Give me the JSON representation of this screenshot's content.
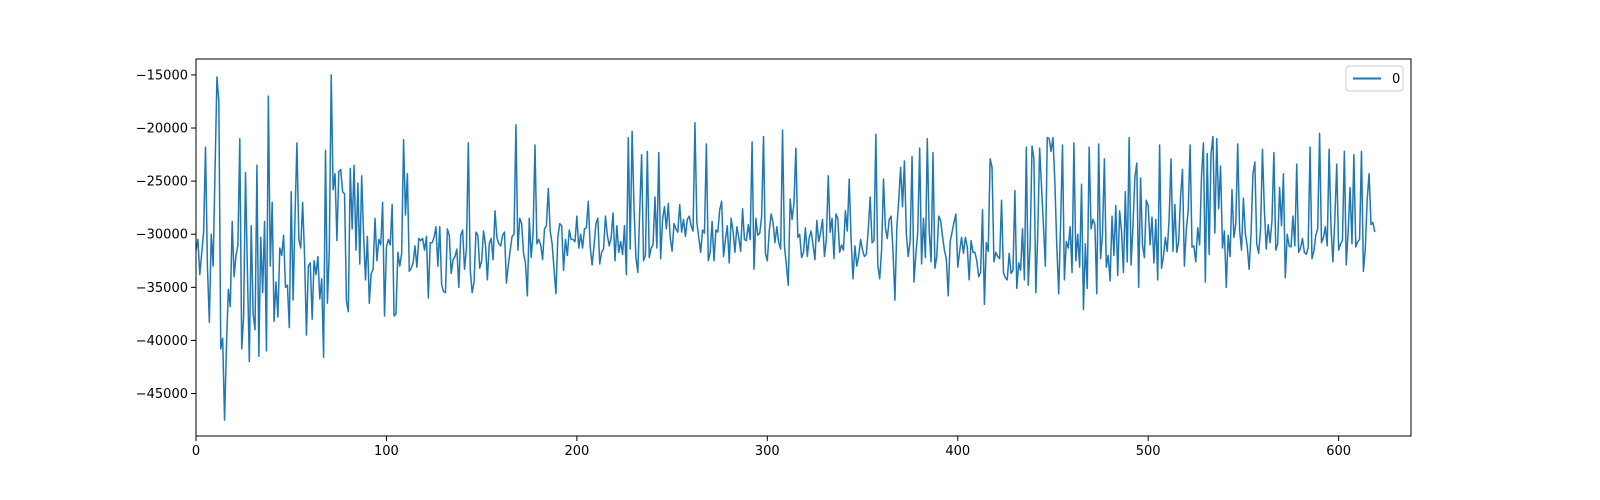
{
  "chart_data": {
    "type": "line",
    "title": "",
    "xlabel": "",
    "ylabel": "",
    "xlim": [
      0,
      638
    ],
    "ylim": [
      -49000,
      -13500
    ],
    "grid": false,
    "legend_position": "top-right",
    "x_ticks": [
      0,
      100,
      200,
      300,
      400,
      500,
      600
    ],
    "x_tick_labels": [
      "0",
      "100",
      "200",
      "300",
      "400",
      "500",
      "600"
    ],
    "y_ticks": [
      -45000,
      -40000,
      -35000,
      -30000,
      -25000,
      -20000,
      -15000
    ],
    "y_tick_labels": [
      "−45000",
      "−40000",
      "−35000",
      "−30000",
      "−25000",
      "−20000",
      "−15000"
    ],
    "x_start": 0,
    "x_step": 1,
    "series": [
      {
        "name": "0",
        "color": "#1f77b4",
        "values": [
          -31500,
          -30500,
          -33800,
          -31800,
          -29800,
          -21800,
          -33000,
          -38300,
          -30000,
          -33000,
          -24000,
          -15200,
          -17500,
          -40800,
          -39800,
          -47500,
          -40500,
          -35200,
          -36800,
          -28800,
          -34000,
          -32000,
          -31000,
          -21000,
          -40800,
          -37800,
          -24200,
          -33500,
          -42000,
          -29200,
          -37500,
          -39000,
          -23500,
          -41500,
          -30300,
          -35500,
          -28800,
          -41000,
          -17000,
          -33000,
          -27000,
          -38200,
          -34500,
          -37800,
          -31300,
          -32000,
          -30100,
          -35000,
          -34800,
          -38800,
          -26000,
          -36200,
          -28300,
          -21400,
          -30500,
          -31300,
          -27000,
          -32000,
          -39500,
          -33000,
          -32700,
          -38000,
          -32500,
          -33800,
          -32100,
          -36100,
          -34200,
          -41600,
          -22100,
          -36500,
          -31500,
          -15000,
          -25800,
          -24300,
          -30600,
          -24100,
          -23900,
          -26000,
          -26200,
          -36300,
          -37300,
          -23800,
          -29500,
          -23500,
          -31500,
          -25200,
          -32800,
          -24500,
          -30100,
          -34300,
          -30200,
          -36500,
          -33700,
          -33300,
          -28500,
          -32500,
          -30500,
          -31000,
          -27000,
          -37700,
          -31200,
          -30500,
          -31000,
          -27200,
          -37700,
          -37500,
          -31700,
          -33000,
          -31800,
          -21100,
          -28200,
          -24300,
          -33500,
          -33200,
          -32700,
          -31100,
          -33100,
          -30400,
          -30600,
          -30400,
          -31500,
          -30200,
          -36000,
          -30800,
          -30800,
          -30300,
          -29300,
          -33000,
          -29300,
          -34800,
          -35400,
          -35500,
          -29500,
          -30100,
          -33700,
          -32400,
          -32100,
          -31400,
          -35000,
          -30100,
          -29600,
          -33300,
          -31400,
          -21400,
          -33300,
          -35500,
          -34500,
          -29800,
          -30100,
          -33200,
          -32500,
          -29700,
          -31000,
          -34300,
          -30900,
          -30400,
          -32400,
          -27800,
          -30300,
          -30900,
          -31100,
          -30100,
          -29800,
          -34600,
          -32900,
          -31500,
          -30200,
          -30000,
          -19700,
          -31500,
          -28500,
          -29000,
          -31800,
          -32700,
          -35800,
          -28500,
          -32200,
          -29900,
          -21600,
          -30900,
          -30500,
          -31000,
          -32400,
          -29500,
          -29200,
          -25700,
          -29700,
          -30900,
          -33300,
          -35600,
          -30300,
          -29000,
          -29200,
          -33400,
          -30500,
          -32000,
          -29600,
          -30500,
          -30500,
          -30700,
          -28300,
          -31300,
          -30000,
          -31300,
          -29500,
          -29400,
          -26900,
          -31200,
          -32900,
          -31100,
          -29000,
          -28500,
          -32800,
          -31700,
          -31400,
          -28300,
          -30100,
          -31100,
          -30300,
          -28000,
          -32500,
          -29200,
          -31700,
          -30700,
          -31900,
          -29200,
          -33800,
          -20900,
          -31400,
          -20300,
          -27500,
          -32200,
          -33600,
          -27800,
          -22500,
          -32500,
          -32000,
          -22200,
          -32200,
          -31300,
          -31000,
          -26500,
          -31300,
          -22300,
          -32300,
          -28600,
          -27400,
          -29500,
          -27100,
          -30300,
          -31600,
          -29000,
          -29500,
          -29800,
          -27200,
          -29800,
          -28600,
          -30200,
          -28600,
          -28300,
          -29200,
          -29700,
          -19500,
          -28900,
          -30300,
          -31700,
          -29600,
          -29900,
          -21500,
          -32500,
          -31700,
          -28800,
          -32500,
          -29600,
          -29800,
          -27700,
          -26900,
          -32100,
          -30500,
          -29200,
          -32700,
          -28500,
          -29700,
          -31700,
          -29300,
          -30300,
          -31600,
          -27600,
          -30500,
          -30600,
          -29100,
          -30500,
          -21300,
          -33300,
          -28500,
          -30100,
          -29900,
          -28400,
          -20800,
          -31800,
          -32500,
          -29700,
          -28100,
          -28900,
          -30800,
          -29300,
          -30800,
          -31400,
          -20200,
          -31100,
          -32900,
          -34800,
          -26700,
          -28600,
          -27100,
          -21900,
          -30300,
          -30000,
          -32200,
          -31700,
          -29400,
          -32100,
          -30300,
          -29700,
          -31000,
          -32400,
          -28700,
          -30700,
          -29800,
          -28600,
          -32100,
          -30500,
          -24500,
          -29800,
          -28500,
          -32300,
          -28100,
          -28500,
          -31700,
          -31000,
          -31500,
          -27800,
          -29700,
          -24800,
          -30500,
          -34200,
          -31100,
          -33000,
          -32000,
          -30500,
          -31500,
          -32100,
          -31900,
          -29600,
          -26500,
          -30800,
          -30600,
          -20600,
          -32900,
          -34200,
          -31500,
          -24800,
          -29400,
          -30400,
          -28600,
          -28300,
          -31600,
          -36200,
          -29400,
          -26800,
          -23700,
          -27400,
          -23100,
          -30000,
          -32100,
          -30600,
          -22700,
          -34500,
          -31900,
          -29800,
          -21900,
          -32800,
          -28500,
          -32200,
          -21000,
          -29700,
          -32600,
          -22300,
          -33200,
          -32100,
          -28300,
          -28700,
          -30200,
          -31500,
          -32300,
          -35800,
          -30700,
          -29800,
          -28900,
          -28100,
          -33100,
          -31600,
          -30300,
          -31800,
          -30300,
          -31200,
          -34300,
          -30600,
          -31700,
          -31700,
          -32500,
          -34000,
          -33600,
          -27700,
          -36600,
          -30800,
          -31600,
          -22900,
          -23700,
          -32600,
          -31700,
          -32100,
          -32300,
          -26800,
          -33600,
          -34100,
          -34300,
          -31800,
          -33700,
          -33400,
          -25900,
          -35100,
          -32700,
          -33400,
          -29500,
          -34300,
          -21800,
          -34800,
          -31000,
          -21700,
          -22900,
          -35500,
          -30000,
          -21900,
          -25600,
          -29200,
          -33000,
          -20900,
          -21000,
          -22200,
          -20900,
          -25100,
          -31100,
          -35600,
          -29100,
          -21600,
          -34300,
          -30700,
          -31300,
          -29300,
          -33600,
          -21400,
          -32500,
          -30000,
          -33100,
          -25300,
          -37100,
          -30900,
          -35100,
          -21800,
          -29500,
          -28600,
          -29100,
          -35600,
          -21500,
          -32300,
          -30000,
          -22900,
          -33100,
          -32000,
          -34400,
          -28300,
          -32000,
          -27300,
          -33900,
          -27800,
          -29700,
          -33600,
          -26000,
          -32600,
          -20900,
          -32900,
          -29200,
          -24700,
          -23300,
          -35000,
          -24700,
          -31000,
          -32200,
          -26800,
          -27300,
          -31000,
          -28400,
          -32700,
          -28600,
          -34300,
          -21600,
          -33200,
          -32100,
          -30300,
          -31600,
          -28500,
          -22900,
          -31600,
          -27200,
          -31700,
          -30700,
          -26500,
          -23900,
          -33000,
          -29600,
          -27800,
          -21600,
          -31200,
          -31100,
          -32600,
          -29400,
          -31000,
          -24500,
          -21400,
          -34500,
          -22400,
          -31900,
          -22400,
          -20800,
          -29900,
          -21000,
          -27600,
          -23600,
          -31300,
          -29700,
          -35000,
          -30100,
          -32100,
          -25800,
          -30300,
          -29000,
          -21500,
          -29600,
          -31500,
          -26600,
          -29900,
          -31100,
          -33300,
          -30000,
          -24300,
          -23200,
          -30900,
          -31800,
          -29600,
          -22000,
          -27700,
          -31400,
          -29100,
          -30800,
          -28700,
          -22300,
          -31500,
          -30900,
          -25600,
          -29200,
          -24300,
          -34100,
          -30000,
          -31100,
          -31200,
          -28300,
          -31100,
          -23400,
          -31700,
          -31300,
          -30400,
          -31700,
          -31900,
          -31300,
          -21800,
          -32300,
          -31600,
          -30100,
          -29500,
          -20500,
          -30800,
          -30300,
          -29300,
          -31100,
          -22000,
          -29400,
          -32600,
          -28600,
          -23400,
          -31500,
          -30900,
          -30600,
          -22200,
          -32900,
          -29700,
          -25600,
          -30900,
          -22500,
          -31200,
          -30700,
          -30500,
          -22200,
          -33500,
          -31400,
          -26700,
          -24300,
          -29100,
          -28900,
          -29800
        ]
      }
    ]
  }
}
